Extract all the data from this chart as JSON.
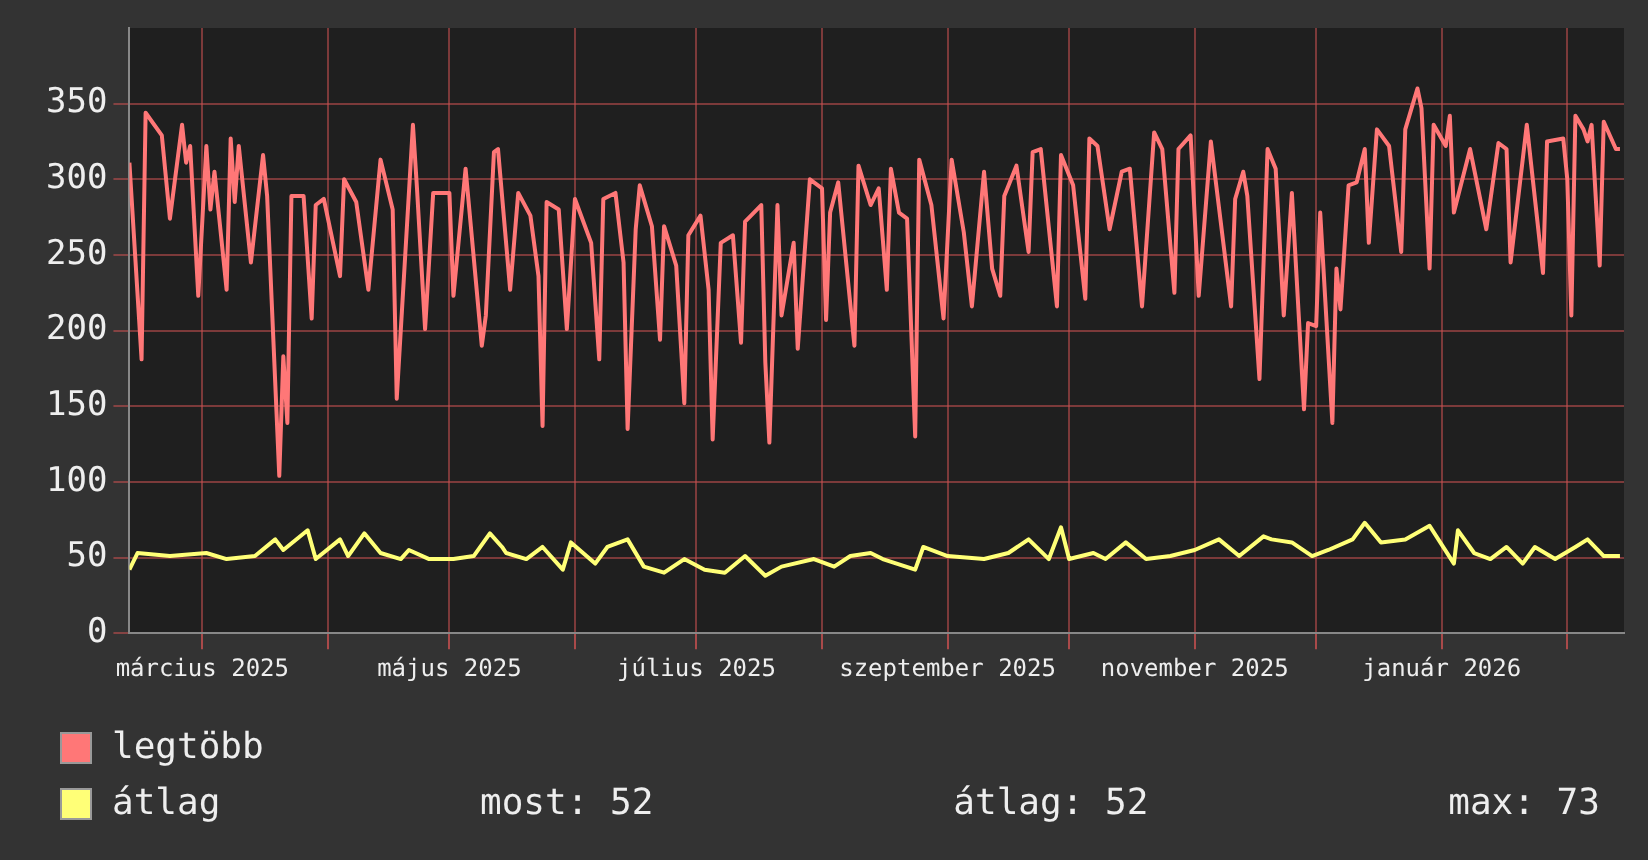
{
  "chart_data": {
    "type": "line",
    "xlim": [
      "2025-02-11",
      "2026-02-15"
    ],
    "xticks": [
      {
        "value": "2025-03-01",
        "label": "március 2025"
      },
      {
        "value": "2025-04-01",
        "label": null
      },
      {
        "value": "2025-05-01",
        "label": "május 2025"
      },
      {
        "value": "2025-06-01",
        "label": null
      },
      {
        "value": "2025-07-01",
        "label": "július 2025"
      },
      {
        "value": "2025-08-01",
        "label": null
      },
      {
        "value": "2025-09-01",
        "label": "szeptember 2025"
      },
      {
        "value": "2025-10-01",
        "label": null
      },
      {
        "value": "2025-11-01",
        "label": "november 2025"
      },
      {
        "value": "2025-12-01",
        "label": null
      },
      {
        "value": "2026-01-01",
        "label": "január 2026"
      },
      {
        "value": "2026-02-01",
        "label": null
      }
    ],
    "ylim": [
      0,
      400
    ],
    "yticks": [
      0,
      50,
      100,
      150,
      200,
      250,
      300,
      350
    ],
    "grid": true,
    "legend": "bottom left",
    "marker": "none",
    "line_style": "solid",
    "annotations": [
      "most: 52",
      "átlag: 52",
      "max: 73"
    ],
    "series": [
      {
        "name": "legtöbb",
        "color": "#ff7777",
        "x": [
          "2025-02-11",
          "2025-02-14",
          "2025-02-15",
          "2025-02-19",
          "2025-02-21",
          "2025-02-24",
          "2025-02-25",
          "2025-02-26",
          "2025-02-28",
          "2025-03-02",
          "2025-03-03",
          "2025-03-04",
          "2025-03-07",
          "2025-03-08",
          "2025-03-09",
          "2025-03-10",
          "2025-03-13",
          "2025-03-16",
          "2025-03-17",
          "2025-03-20",
          "2025-03-21",
          "2025-03-22",
          "2025-03-23",
          "2025-03-26",
          "2025-03-28",
          "2025-03-29",
          "2025-03-31",
          "2025-04-04",
          "2025-04-05",
          "2025-04-08",
          "2025-04-11",
          "2025-04-14",
          "2025-04-17",
          "2025-04-18",
          "2025-04-22",
          "2025-04-23",
          "2025-04-25",
          "2025-04-27",
          "2025-05-01",
          "2025-05-02",
          "2025-05-05",
          "2025-05-09",
          "2025-05-10",
          "2025-05-12",
          "2025-05-13",
          "2025-05-16",
          "2025-05-18",
          "2025-05-21",
          "2025-05-23",
          "2025-05-24",
          "2025-05-25",
          "2025-05-28",
          "2025-05-30",
          "2025-06-01",
          "2025-06-05",
          "2025-06-07",
          "2025-06-08",
          "2025-06-11",
          "2025-06-13",
          "2025-06-14",
          "2025-06-16",
          "2025-06-17",
          "2025-06-20",
          "2025-06-22",
          "2025-06-23",
          "2025-06-26",
          "2025-06-28",
          "2025-06-29",
          "2025-07-02",
          "2025-07-04",
          "2025-07-05",
          "2025-07-07",
          "2025-07-10",
          "2025-07-12",
          "2025-07-13",
          "2025-07-17",
          "2025-07-18",
          "2025-07-19",
          "2025-07-21",
          "2025-07-22",
          "2025-07-25",
          "2025-07-26",
          "2025-07-29",
          "2025-08-01",
          "2025-08-02",
          "2025-08-03",
          "2025-08-05",
          "2025-08-09",
          "2025-08-10",
          "2025-08-13",
          "2025-08-15",
          "2025-08-17",
          "2025-08-18",
          "2025-08-20",
          "2025-08-22",
          "2025-08-24",
          "2025-08-25",
          "2025-08-28",
          "2025-08-31",
          "2025-09-02",
          "2025-09-05",
          "2025-09-07",
          "2025-09-10",
          "2025-09-12",
          "2025-09-14",
          "2025-09-15",
          "2025-09-18",
          "2025-09-21",
          "2025-09-22",
          "2025-09-24",
          "2025-09-28",
          "2025-09-29",
          "2025-10-02",
          "2025-10-05",
          "2025-10-06",
          "2025-10-08",
          "2025-10-11",
          "2025-10-14",
          "2025-10-16",
          "2025-10-19",
          "2025-10-22",
          "2025-10-24",
          "2025-10-27",
          "2025-10-28",
          "2025-10-31",
          "2025-11-02",
          "2025-11-05",
          "2025-11-10",
          "2025-11-11",
          "2025-11-13",
          "2025-11-14",
          "2025-11-17",
          "2025-11-19",
          "2025-11-21",
          "2025-11-23",
          "2025-11-25",
          "2025-11-28",
          "2025-11-29",
          "2025-12-01",
          "2025-12-02",
          "2025-12-05",
          "2025-12-06",
          "2025-12-07",
          "2025-12-09",
          "2025-12-11",
          "2025-12-13",
          "2025-12-14",
          "2025-12-16",
          "2025-12-19",
          "2025-12-22",
          "2025-12-23",
          "2025-12-26",
          "2025-12-27",
          "2025-12-29",
          "2025-12-30",
          "2026-01-02",
          "2026-01-03",
          "2026-01-04",
          "2026-01-08",
          "2026-01-12",
          "2026-01-15",
          "2026-01-17",
          "2026-01-18",
          "2026-01-22",
          "2026-01-25",
          "2026-01-26",
          "2026-01-27",
          "2026-01-31",
          "2026-02-01",
          "2026-02-02",
          "2026-02-03",
          "2026-02-05",
          "2026-02-06",
          "2026-02-07",
          "2026-02-08",
          "2026-02-09",
          "2026-02-10",
          "2026-02-13",
          "2026-02-14"
        ],
        "values": [
          311,
          181,
          344,
          329,
          274,
          336,
          311,
          322,
          223,
          322,
          280,
          305,
          227,
          327,
          285,
          322,
          245,
          316,
          289,
          104,
          183,
          139,
          289,
          289,
          208,
          283,
          287,
          236,
          300,
          285,
          227,
          313,
          280,
          155,
          336,
          294,
          201,
          291,
          291,
          223,
          307,
          190,
          210,
          318,
          320,
          227,
          291,
          276,
          236,
          137,
          285,
          280,
          201,
          287,
          258,
          181,
          287,
          291,
          245,
          135,
          267,
          296,
          269,
          194,
          269,
          243,
          152,
          263,
          276,
          227,
          128,
          258,
          263,
          192,
          272,
          283,
          179,
          126,
          283,
          210,
          258,
          188,
          300,
          294,
          207,
          278,
          298,
          190,
          309,
          283,
          294,
          227,
          307,
          278,
          274,
          130,
          313,
          283,
          208,
          313,
          265,
          216,
          305,
          241,
          223,
          289,
          309,
          252,
          318,
          320,
          216,
          316,
          296,
          221,
          327,
          322,
          267,
          305,
          307,
          216,
          331,
          320,
          225,
          320,
          329,
          223,
          325,
          216,
          287,
          305,
          289,
          168,
          320,
          307,
          210,
          291,
          148,
          205,
          203,
          278,
          139,
          241,
          214,
          296,
          298,
          320,
          258,
          333,
          322,
          252,
          333,
          360,
          347,
          241,
          336,
          322,
          342,
          278,
          320,
          267,
          324,
          320,
          245,
          336,
          263,
          238,
          325,
          327,
          300,
          210,
          342,
          333,
          325,
          336,
          289,
          243,
          338,
          320,
          320
        ]
      },
      {
        "name": "átlag",
        "color": "#ffff77",
        "x": [
          "2025-02-11",
          "2025-02-13",
          "2025-02-21",
          "2025-03-02",
          "2025-03-07",
          "2025-03-14",
          "2025-03-19",
          "2025-03-21",
          "2025-03-27",
          "2025-03-29",
          "2025-04-04",
          "2025-04-06",
          "2025-04-10",
          "2025-04-14",
          "2025-04-19",
          "2025-04-21",
          "2025-04-26",
          "2025-05-02",
          "2025-05-07",
          "2025-05-11",
          "2025-05-14",
          "2025-05-15",
          "2025-05-20",
          "2025-05-24",
          "2025-05-29",
          "2025-05-31",
          "2025-06-06",
          "2025-06-09",
          "2025-06-14",
          "2025-06-18",
          "2025-06-23",
          "2025-06-28",
          "2025-07-03",
          "2025-07-08",
          "2025-07-13",
          "2025-07-18",
          "2025-07-22",
          "2025-07-30",
          "2025-08-04",
          "2025-08-08",
          "2025-08-13",
          "2025-08-16",
          "2025-08-24",
          "2025-08-26",
          "2025-09-01",
          "2025-09-10",
          "2025-09-16",
          "2025-09-21",
          "2025-09-26",
          "2025-09-29",
          "2025-10-01",
          "2025-10-07",
          "2025-10-10",
          "2025-10-15",
          "2025-10-20",
          "2025-10-26",
          "2025-11-01",
          "2025-11-07",
          "2025-11-12",
          "2025-11-18",
          "2025-11-20",
          "2025-11-25",
          "2025-11-30",
          "2025-12-04",
          "2025-12-10",
          "2025-12-13",
          "2025-12-17",
          "2025-12-23",
          "2025-12-29",
          "2026-01-04",
          "2026-01-05",
          "2026-01-09",
          "2026-01-13",
          "2026-01-17",
          "2026-01-21",
          "2026-01-24",
          "2026-01-29",
          "2026-02-03",
          "2026-02-06",
          "2026-02-10",
          "2026-02-14"
        ],
        "values": [
          42,
          53,
          51,
          53,
          49,
          51,
          62,
          55,
          68,
          49,
          62,
          51,
          66,
          53,
          49,
          55,
          49,
          49,
          51,
          66,
          57,
          53,
          49,
          57,
          42,
          60,
          46,
          57,
          62,
          44,
          40,
          49,
          42,
          40,
          51,
          38,
          44,
          49,
          44,
          51,
          53,
          49,
          42,
          57,
          51,
          49,
          53,
          62,
          49,
          70,
          49,
          53,
          49,
          60,
          49,
          51,
          55,
          62,
          51,
          64,
          62,
          60,
          51,
          55,
          62,
          73,
          60,
          62,
          71,
          46,
          68,
          53,
          49,
          57,
          46,
          57,
          49,
          57,
          62,
          51,
          51
        ]
      }
    ]
  }
}
